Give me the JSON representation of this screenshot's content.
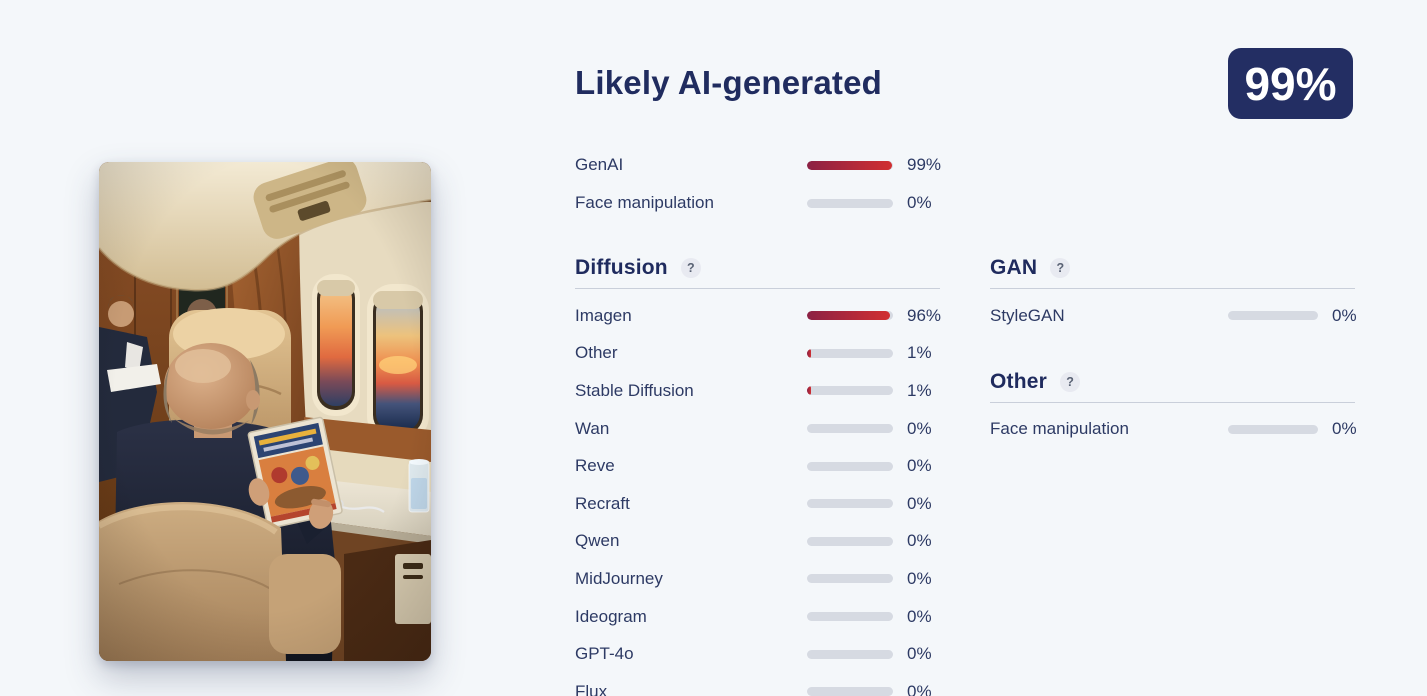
{
  "page": {
    "background_color": "#f4f7fa",
    "accent_navy": "#232e63",
    "bar_track_color": "#d6dae2",
    "bar_fill_gradient": [
      "#8c2144",
      "#d12f31"
    ]
  },
  "image_preview": {
    "description": "Analyzed photo: man in a dark suit seen from behind in a private jet cabin, reading an illustrated book beside oval windows showing a sunset"
  },
  "result": {
    "title": "Likely AI-generated",
    "score_badge": "99%",
    "summary": [
      {
        "label": "GenAI",
        "value": 99,
        "display": "99%"
      },
      {
        "label": "Face manipulation",
        "value": 0,
        "display": "0%"
      }
    ],
    "sections": [
      {
        "title": "Diffusion",
        "help_label": "?",
        "rows": [
          {
            "label": "Imagen",
            "value": 96,
            "display": "96%"
          },
          {
            "label": "Other",
            "value": 1,
            "display": "1%"
          },
          {
            "label": "Stable Diffusion",
            "value": 1,
            "display": "1%"
          },
          {
            "label": "Wan",
            "value": 0,
            "display": "0%"
          },
          {
            "label": "Reve",
            "value": 0,
            "display": "0%"
          },
          {
            "label": "Recraft",
            "value": 0,
            "display": "0%"
          },
          {
            "label": "Qwen",
            "value": 0,
            "display": "0%"
          },
          {
            "label": "MidJourney",
            "value": 0,
            "display": "0%"
          },
          {
            "label": "Ideogram",
            "value": 0,
            "display": "0%"
          },
          {
            "label": "GPT-4o",
            "value": 0,
            "display": "0%"
          },
          {
            "label": "Flux",
            "value": 0,
            "display": "0%"
          }
        ]
      },
      {
        "title": "GAN",
        "help_label": "?",
        "rows": [
          {
            "label": "StyleGAN",
            "value": 0,
            "display": "0%"
          }
        ]
      },
      {
        "title": "Other",
        "help_label": "?",
        "rows": [
          {
            "label": "Face manipulation",
            "value": 0,
            "display": "0%"
          }
        ]
      }
    ]
  }
}
